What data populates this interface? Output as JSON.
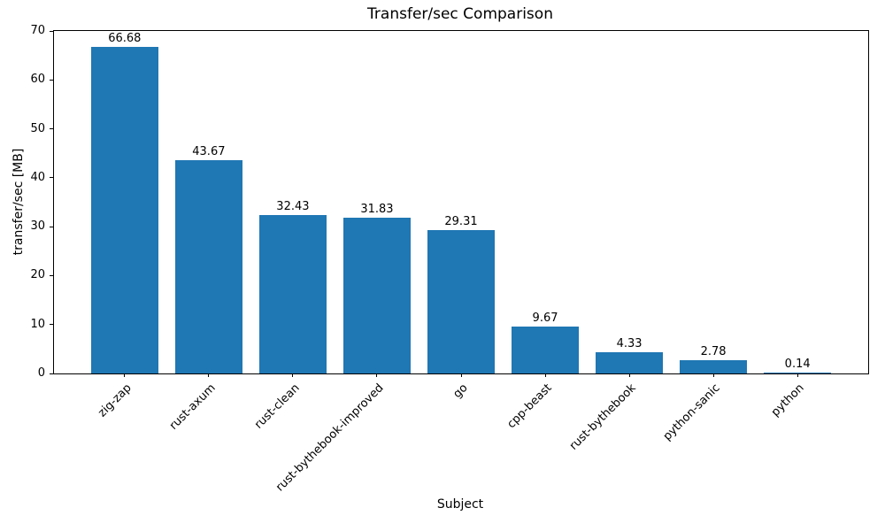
{
  "chart_data": {
    "type": "bar",
    "title": "Transfer/sec Comparison",
    "xlabel": "Subject",
    "ylabel": "transfer/sec [MB]",
    "categories": [
      "zig-zap",
      "rust-axum",
      "rust-clean",
      "rust-bythebook-improved",
      "go",
      "cpp-beast",
      "rust-bythebook",
      "python-sanic",
      "python"
    ],
    "values": [
      66.68,
      43.67,
      32.43,
      31.83,
      29.31,
      9.67,
      4.33,
      2.78,
      0.14
    ],
    "bar_labels": [
      "66.68",
      "43.67",
      "32.43",
      "31.83",
      "29.31",
      "9.67",
      "4.33",
      "2.78",
      "0.14"
    ],
    "ylim": [
      0,
      70
    ],
    "yticks": [
      0,
      10,
      20,
      30,
      40,
      50,
      60,
      70
    ],
    "bar_color": "#1f77b4",
    "grid": false,
    "legend_position": "none",
    "x_tick_rotation_deg": 45
  }
}
